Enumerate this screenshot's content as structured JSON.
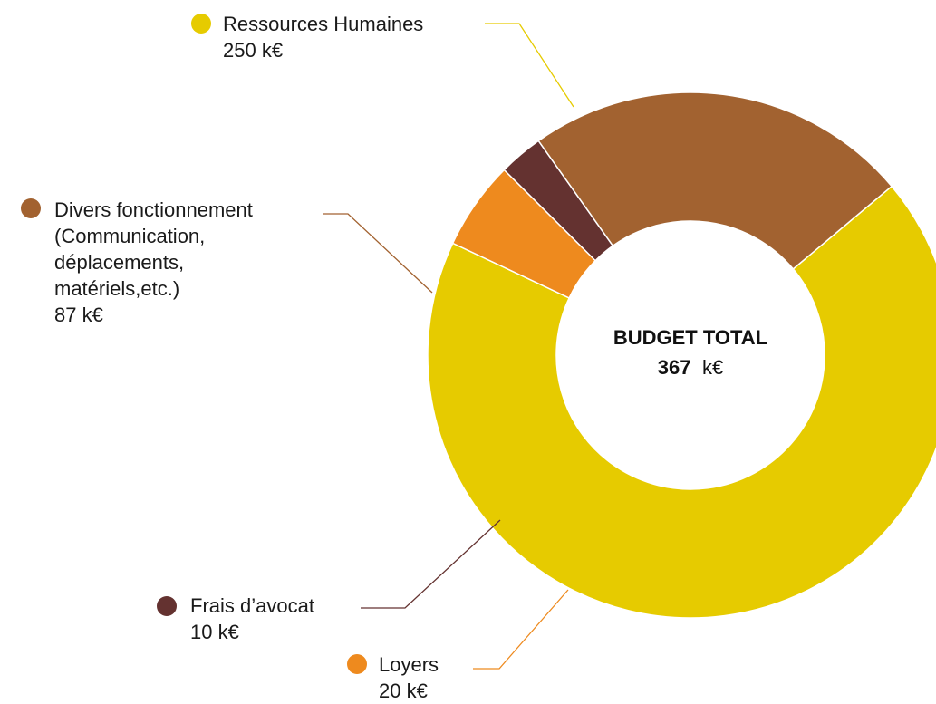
{
  "chart_data": {
    "type": "pie",
    "variant": "donut",
    "start_angle_deg": -40,
    "direction": "clockwise",
    "unit": "k€",
    "slices": [
      {
        "label_lines": [
          "Ressources Humaines"
        ],
        "value": 250,
        "value_label": "250 k€",
        "color": "#E6CB00"
      },
      {
        "label_lines": [
          "Loyers"
        ],
        "value": 20,
        "value_label": "20 k€",
        "color": "#EE8A1E"
      },
      {
        "label_lines": [
          "Frais d’avocat"
        ],
        "value": 10,
        "value_label": "10 k€",
        "color": "#643230"
      },
      {
        "label_lines": [
          "Divers fonctionnement",
          "(Communication,",
          "déplacements,",
          "matériels,etc.)"
        ],
        "value": 87,
        "value_label": "87 k€",
        "color": "#A26230"
      }
    ],
    "center": {
      "title": "BUDGET TOTAL",
      "value": "367",
      "unit": "k€"
    }
  }
}
